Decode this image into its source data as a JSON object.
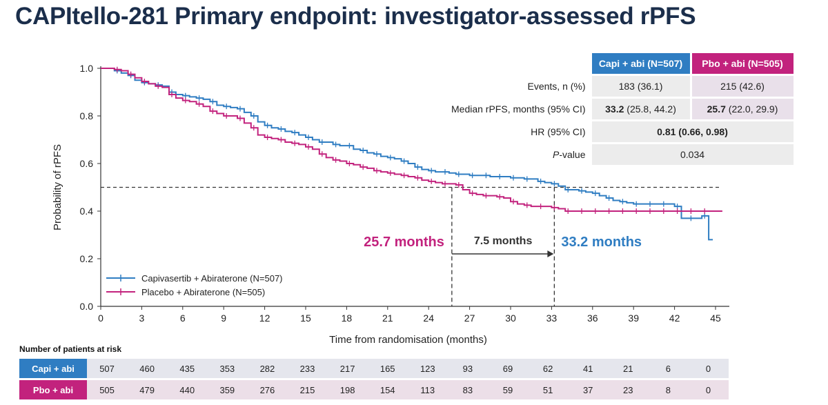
{
  "title": "CAPItello-281 Primary endpoint: investigator-assessed rPFS",
  "colors": {
    "capi": "#2f7dc2",
    "pbo": "#c2227d",
    "title": "#1b2e4b"
  },
  "chart_data": {
    "type": "line",
    "xlabel": "Time from randomisation (months)",
    "ylabel": "Probability of rPFS",
    "xlim": [
      0,
      45
    ],
    "ylim": [
      0,
      1
    ],
    "x_ticks": [
      0,
      3,
      6,
      9,
      12,
      15,
      18,
      21,
      24,
      27,
      30,
      33,
      36,
      39,
      42,
      45
    ],
    "y_ticks": [
      "0.0",
      "0.2",
      "0.4",
      "0.6",
      "0.8",
      "1.0"
    ],
    "grid": false,
    "legend_position": "bottom-left",
    "reference_line_y": 0.5,
    "series": [
      {
        "name": "Capivasertib + Abiraterone (N=507)",
        "color": "#2f7dc2",
        "x": [
          0,
          0.5,
          1,
          1.5,
          2,
          2.5,
          3,
          3.5,
          4,
          4.5,
          5,
          5.5,
          6,
          6.5,
          7,
          7.5,
          8,
          8.5,
          9,
          9.5,
          10,
          10.5,
          11,
          11.5,
          12,
          12.5,
          13,
          13.5,
          14,
          14.5,
          15,
          15.5,
          16,
          16.5,
          17,
          17.5,
          18,
          18.5,
          19,
          19.5,
          20,
          20.5,
          21,
          21.5,
          22,
          22.5,
          23,
          23.5,
          24,
          24.5,
          25,
          25.5,
          26,
          26.5,
          27,
          27.5,
          28,
          28.5,
          29,
          29.5,
          30,
          30.5,
          31,
          31.5,
          32,
          32.5,
          33,
          33.5,
          34,
          34.5,
          35,
          35.5,
          36,
          36.5,
          37,
          37.5,
          38,
          38.5,
          39,
          39.5,
          40,
          40.5,
          41,
          41.5,
          42,
          42.5,
          43,
          43.5,
          44,
          44.5,
          44.8
        ],
        "y": [
          1.0,
          1.0,
          0.99,
          0.98,
          0.97,
          0.95,
          0.94,
          0.935,
          0.93,
          0.925,
          0.9,
          0.89,
          0.885,
          0.88,
          0.875,
          0.87,
          0.86,
          0.845,
          0.84,
          0.835,
          0.83,
          0.815,
          0.8,
          0.775,
          0.76,
          0.75,
          0.745,
          0.735,
          0.73,
          0.72,
          0.71,
          0.7,
          0.69,
          0.69,
          0.68,
          0.675,
          0.675,
          0.66,
          0.655,
          0.645,
          0.64,
          0.63,
          0.625,
          0.62,
          0.61,
          0.6,
          0.585,
          0.575,
          0.57,
          0.565,
          0.565,
          0.56,
          0.555,
          0.555,
          0.55,
          0.55,
          0.55,
          0.545,
          0.545,
          0.545,
          0.54,
          0.54,
          0.535,
          0.535,
          0.525,
          0.52,
          0.515,
          0.505,
          0.49,
          0.49,
          0.485,
          0.48,
          0.475,
          0.465,
          0.455,
          0.445,
          0.44,
          0.435,
          0.43,
          0.43,
          0.43,
          0.43,
          0.43,
          0.43,
          0.42,
          0.37,
          0.37,
          0.37,
          0.38,
          0.28,
          0.28
        ]
      },
      {
        "name": "Placebo + Abiraterone (N=505)",
        "color": "#c2227d",
        "x": [
          0,
          0.5,
          1,
          1.5,
          2,
          2.5,
          3,
          3.5,
          4,
          4.5,
          5,
          5.5,
          6,
          6.5,
          7,
          7.5,
          8,
          8.5,
          9,
          9.5,
          10,
          10.5,
          11,
          11.5,
          12,
          12.5,
          13,
          13.5,
          14,
          14.5,
          15,
          15.5,
          16,
          16.5,
          17,
          17.5,
          18,
          18.5,
          19,
          19.5,
          20,
          20.5,
          21,
          21.5,
          22,
          22.5,
          23,
          23.5,
          24,
          24.5,
          25,
          25.5,
          26,
          26.5,
          27,
          27.5,
          28,
          28.5,
          29,
          29.5,
          30,
          30.5,
          31,
          31.5,
          32,
          32.5,
          33,
          33.5,
          34,
          34.5,
          35,
          35.5,
          36,
          36.5,
          37,
          37.5,
          38,
          38.5,
          39,
          39.5,
          40,
          40.5,
          41,
          41.5,
          42,
          42.5,
          43,
          43.5,
          44,
          44.5,
          45.5
        ],
        "y": [
          1.0,
          1.0,
          0.995,
          0.99,
          0.975,
          0.96,
          0.945,
          0.935,
          0.925,
          0.92,
          0.89,
          0.875,
          0.865,
          0.86,
          0.85,
          0.84,
          0.82,
          0.81,
          0.8,
          0.8,
          0.79,
          0.77,
          0.75,
          0.72,
          0.71,
          0.705,
          0.7,
          0.69,
          0.685,
          0.68,
          0.67,
          0.66,
          0.64,
          0.625,
          0.615,
          0.61,
          0.6,
          0.595,
          0.585,
          0.58,
          0.57,
          0.565,
          0.56,
          0.555,
          0.55,
          0.545,
          0.54,
          0.53,
          0.525,
          0.52,
          0.515,
          0.515,
          0.51,
          0.49,
          0.475,
          0.47,
          0.465,
          0.465,
          0.46,
          0.455,
          0.44,
          0.43,
          0.425,
          0.42,
          0.42,
          0.42,
          0.415,
          0.41,
          0.4,
          0.4,
          0.4,
          0.4,
          0.4,
          0.4,
          0.4,
          0.4,
          0.4,
          0.4,
          0.4,
          0.4,
          0.4,
          0.4,
          0.4,
          0.4,
          0.4,
          0.4,
          0.4,
          0.4,
          0.4,
          0.4,
          0.4
        ]
      }
    ],
    "annotations": {
      "pbo_median_label": "25.7 months",
      "capi_median_label": "33.2 months",
      "difference_label": "7.5 months",
      "pbo_median_x": 25.7,
      "capi_median_x": 33.2
    }
  },
  "summary_table": {
    "headers": [
      "Capi + abi (N=507)",
      "Pbo + abi (N=505)"
    ],
    "events_label": "Events, n (%)",
    "events_capi": "183 (36.1)",
    "events_pbo": "215 (42.6)",
    "median_label": "Median rPFS, months (95% CI)",
    "median_capi_value": "33.2",
    "median_capi_ci": " (25.8, 44.2)",
    "median_pbo_value": "25.7",
    "median_pbo_ci": " (22.0, 29.9)",
    "hr_label": "HR (95% CI)",
    "hr_value": "0.81 (0.66, 0.98)",
    "p_label_italic": "P",
    "p_label_rest": "-value",
    "p_value": "0.034"
  },
  "risk_table": {
    "title": "Number of patients at risk",
    "rows": [
      {
        "label": "Capi + abi",
        "values": [
          "507",
          "460",
          "435",
          "353",
          "282",
          "233",
          "217",
          "165",
          "123",
          "93",
          "69",
          "62",
          "41",
          "21",
          "6",
          "0"
        ]
      },
      {
        "label": "Pbo + abi",
        "values": [
          "505",
          "479",
          "440",
          "359",
          "276",
          "215",
          "198",
          "154",
          "113",
          "83",
          "59",
          "51",
          "37",
          "23",
          "8",
          "0"
        ]
      }
    ]
  }
}
